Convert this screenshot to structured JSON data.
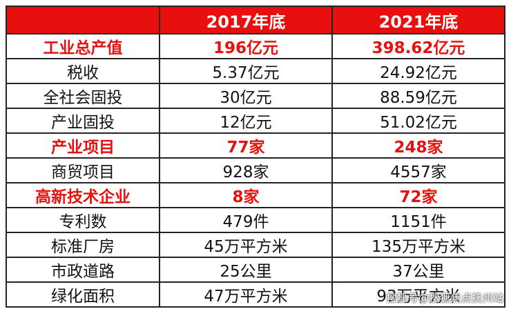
{
  "table": {
    "headers": [
      "",
      "2017年底",
      "2021年底"
    ],
    "rows": [
      {
        "label": "工业总产值",
        "v2017": "196亿元",
        "v2021": "398.62亿元",
        "highlight": true
      },
      {
        "label": "税收",
        "v2017": "5.37亿元",
        "v2021": "24.92亿元",
        "highlight": false
      },
      {
        "label": "全社会固投",
        "v2017": "30亿元",
        "v2021": "88.59亿元",
        "highlight": false
      },
      {
        "label": "产业固投",
        "v2017": "12亿元",
        "v2021": "51.02亿元",
        "highlight": false
      },
      {
        "label": "产业项目",
        "v2017": "77家",
        "v2021": "248家",
        "highlight": true
      },
      {
        "label": "商贸项目",
        "v2017": "928家",
        "v2021": "4557家",
        "highlight": false
      },
      {
        "label": "高新技术企业",
        "v2017": "8家",
        "v2021": "72家",
        "highlight": true
      },
      {
        "label": "专利数",
        "v2017": "479件",
        "v2021": "1151件",
        "highlight": false
      },
      {
        "label": "标准厂房",
        "v2017": "45万平方米",
        "v2021": "135万平方米",
        "highlight": false
      },
      {
        "label": "市政道路",
        "v2017": "25公里",
        "v2021": "37公里",
        "highlight": false
      },
      {
        "label": "绿化面积",
        "v2017": "47万平方米",
        "v2021": "93万平方米",
        "highlight": false
      }
    ]
  },
  "watermark": "搜狐号@搜狐焦点抚州站",
  "colors": {
    "header_bg": "#e8100f",
    "highlight_text": "#e8100f",
    "border": "#222222"
  }
}
